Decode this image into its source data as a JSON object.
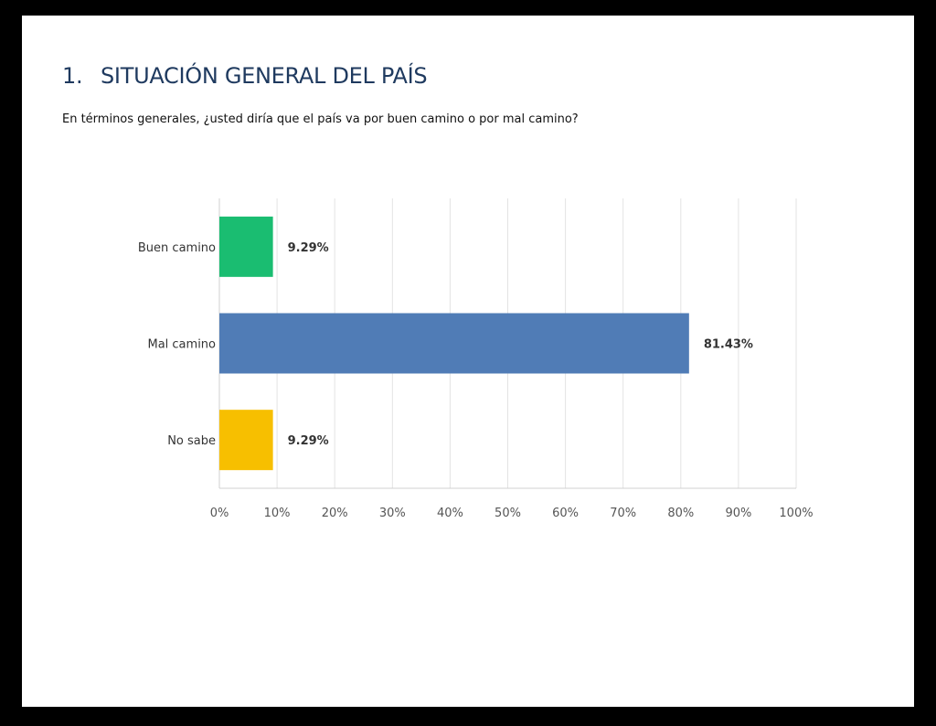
{
  "header": {
    "number": "1.",
    "title": "SITUACIÓN GENERAL DEL PAÍS"
  },
  "question": "En términos generales, ¿usted diría que el país va por buen camino o por mal camino?",
  "chart_data": {
    "type": "bar",
    "orientation": "horizontal",
    "categories": [
      "Buen camino",
      "Mal camino",
      "No sabe"
    ],
    "values": [
      9.29,
      81.43,
      9.29
    ],
    "value_labels": [
      "9.29%",
      "81.43%",
      "9.29%"
    ],
    "colors": [
      "#1abd71",
      "#507cb6",
      "#f7bf00"
    ],
    "xlim": [
      0,
      100
    ],
    "x_ticks": [
      0,
      10,
      20,
      30,
      40,
      50,
      60,
      70,
      80,
      90,
      100
    ],
    "x_tick_labels": [
      "0%",
      "10%",
      "20%",
      "30%",
      "40%",
      "50%",
      "60%",
      "70%",
      "80%",
      "90%",
      "100%"
    ],
    "grid": true,
    "legend": "none"
  }
}
